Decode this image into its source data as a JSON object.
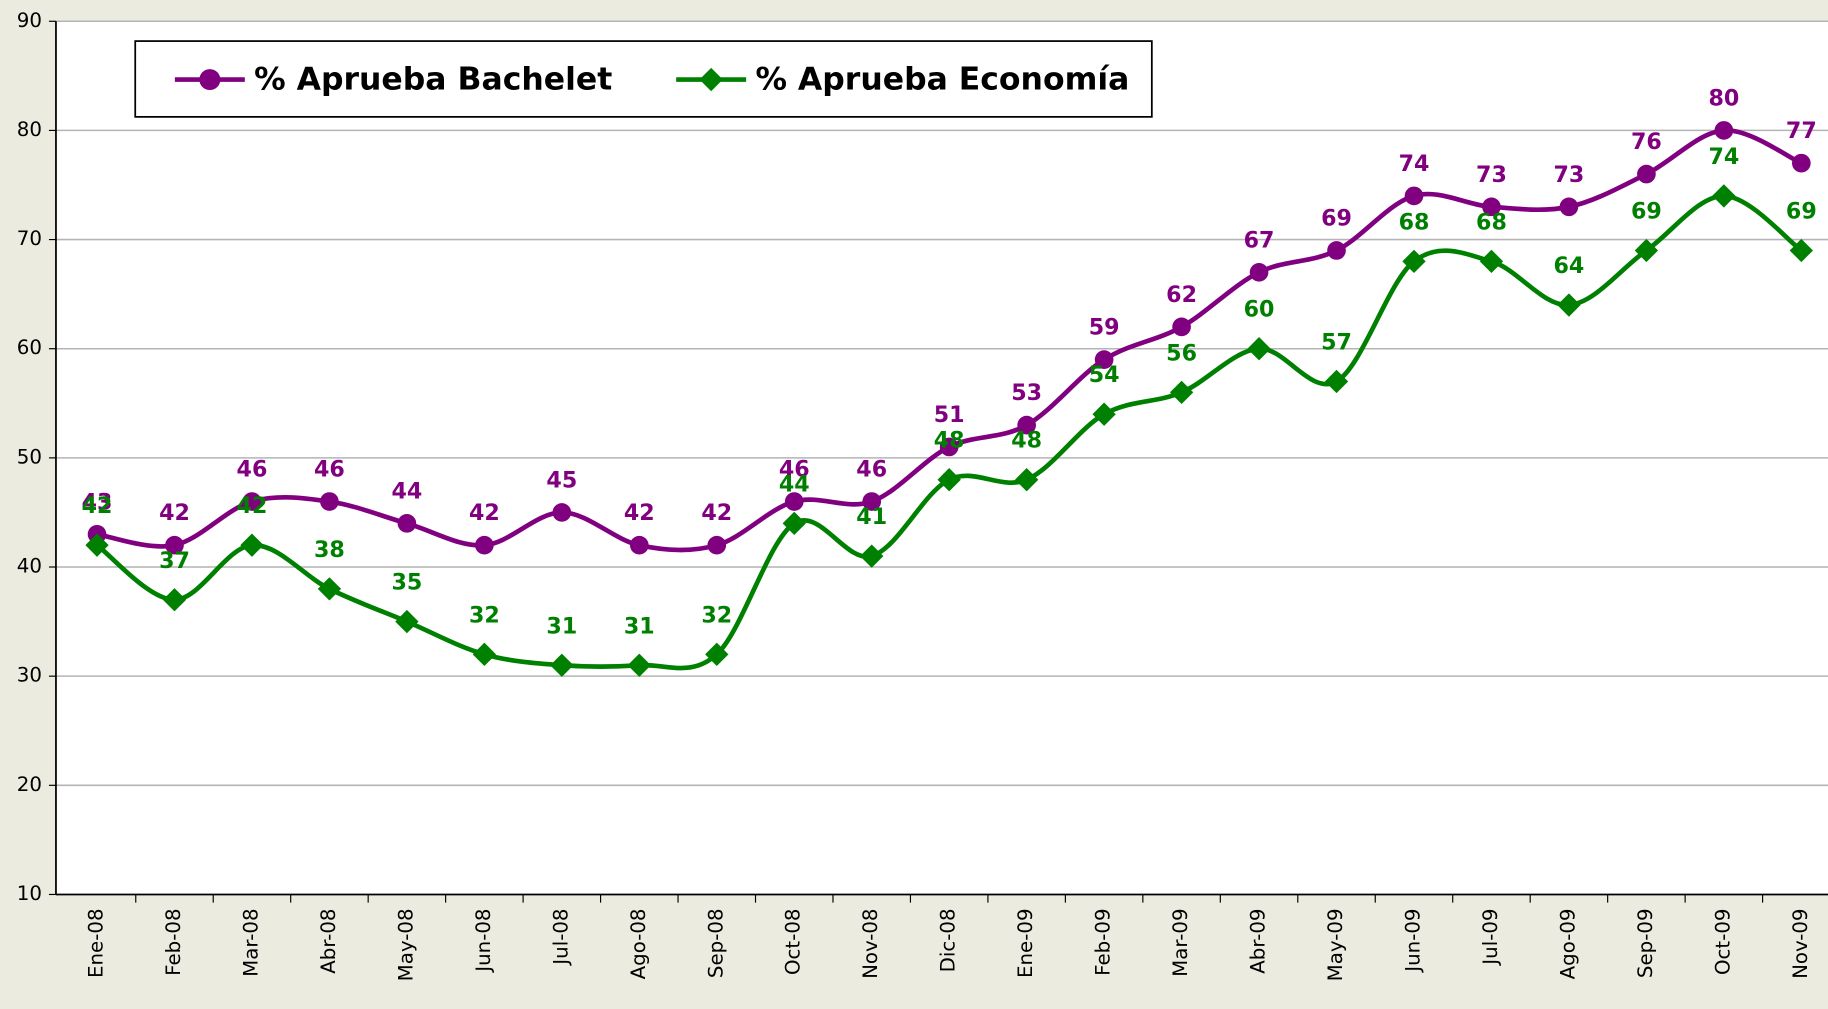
{
  "chart_data": {
    "type": "line",
    "categories": [
      "Ene-08",
      "Feb-08",
      "Mar-08",
      "Abr-08",
      "May-08",
      "Jun-08",
      "Jul-08",
      "Ago-08",
      "Sep-08",
      "Oct-08",
      "Nov-08",
      "Dic-08",
      "Ene-09",
      "Feb-09",
      "Mar-09",
      "Abr-09",
      "May-09",
      "Jun-09",
      "Jul-09",
      "Ago-09",
      "Sep-09",
      "Oct-09",
      "Nov-09"
    ],
    "series": [
      {
        "name": "% Aprueba Bachelet",
        "color": "#800080",
        "marker": "circle",
        "values": [
          43,
          42,
          46,
          46,
          44,
          42,
          45,
          42,
          42,
          46,
          46,
          51,
          53,
          59,
          62,
          67,
          69,
          74,
          73,
          73,
          76,
          80,
          77
        ]
      },
      {
        "name": "% Aprueba Economía",
        "color": "#008000",
        "marker": "diamond",
        "values": [
          42,
          37,
          42,
          38,
          35,
          32,
          31,
          31,
          32,
          44,
          41,
          48,
          48,
          54,
          56,
          60,
          57,
          68,
          68,
          64,
          69,
          74,
          69
        ]
      }
    ],
    "ylim": [
      10,
      90
    ],
    "yticks": [
      10,
      20,
      30,
      40,
      50,
      60,
      70,
      80,
      90
    ],
    "grid": true,
    "legend": "top-left"
  }
}
